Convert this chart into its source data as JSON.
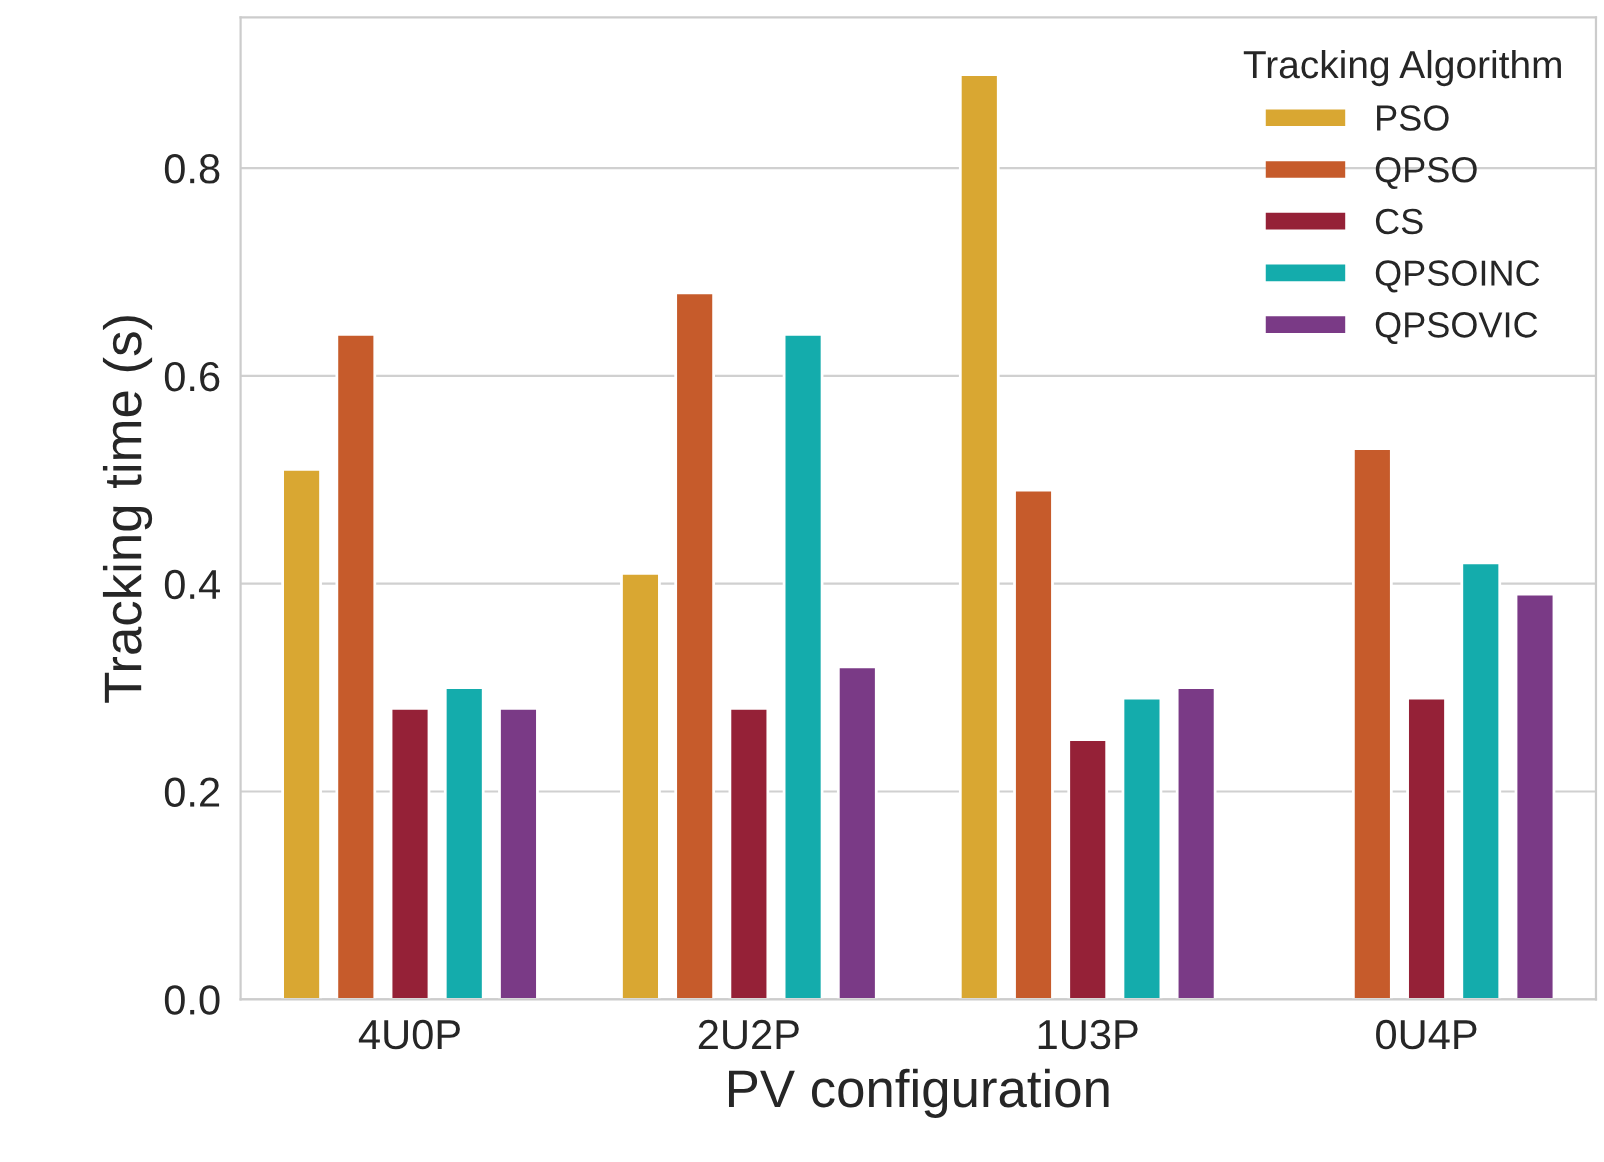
{
  "chart_data": {
    "type": "bar",
    "xlabel": "PV configuration",
    "ylabel": "Tracking time (s)",
    "legend_title": "Tracking Algorithm",
    "categories": [
      "4U0P",
      "2U2P",
      "1U3P",
      "0U4P"
    ],
    "series": [
      {
        "name": "PSO",
        "color": "#d9a732",
        "values": [
          0.51,
          0.41,
          0.89,
          null
        ]
      },
      {
        "name": "QPSO",
        "color": "#c65b2b",
        "values": [
          0.64,
          0.68,
          0.49,
          0.53
        ]
      },
      {
        "name": "CS",
        "color": "#952137",
        "values": [
          0.28,
          0.28,
          0.25,
          0.29
        ]
      },
      {
        "name": "QPSOINC",
        "color": "#14acac",
        "values": [
          0.3,
          0.64,
          0.29,
          0.42
        ]
      },
      {
        "name": "QPSOVIC",
        "color": "#7a3a86",
        "values": [
          0.28,
          0.32,
          0.3,
          0.39
        ]
      }
    ],
    "ylim": [
      0,
      0.945
    ],
    "yticks": [
      {
        "value": 0,
        "label": "0.0"
      },
      0.2,
      0.4,
      0.6,
      0.8
    ],
    "grid": "y",
    "legend": "top right"
  }
}
